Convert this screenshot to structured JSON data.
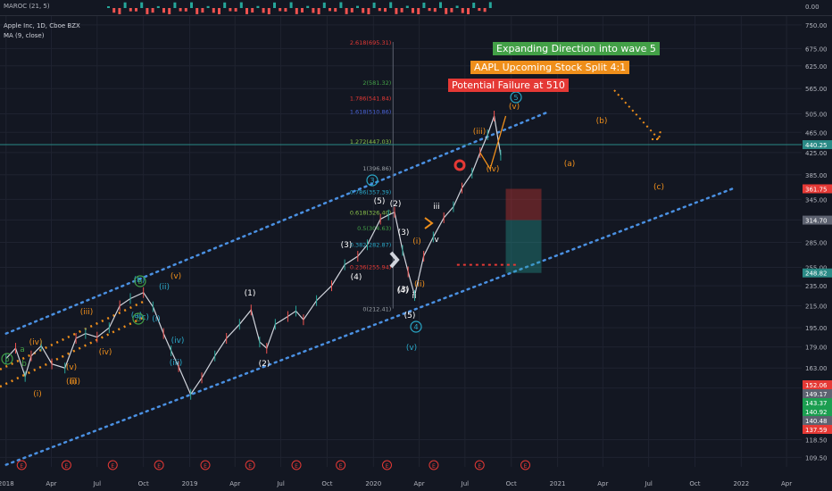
{
  "indicator_title": "MAROC (21, 5)",
  "symbol_title": "Apple Inc, 1D, Cboe BZX",
  "ma_title": "MA (9, close)",
  "indicator_axis": [
    "0.00",
    "-5.00"
  ],
  "banners": [
    {
      "text": "Expanding Direction into wave 5",
      "color": "#43a047"
    },
    {
      "text": "AAPL Upcoming Stock Split 4:1",
      "color": "#ef8f1b"
    },
    {
      "text": "Potential Failure at 510",
      "color": "#e53935"
    }
  ],
  "price_axis_ticks": [
    "750.00",
    "675.00",
    "625.00",
    "565.00",
    "505.00",
    "465.00",
    "425.00",
    "385.00",
    "345.00",
    "315.00",
    "285.00",
    "255.00",
    "235.00",
    "215.00",
    "195.00",
    "179.00",
    "163.00",
    "149.17",
    "118.50",
    "109.50"
  ],
  "price_badges": [
    {
      "text": "440.25",
      "bg": "#2a8a86"
    },
    {
      "text": "361.75",
      "bg": "#e53935"
    },
    {
      "text": "314.70",
      "bg": "#5d6270"
    },
    {
      "text": "248.82",
      "bg": "#2a8a86"
    },
    {
      "text": "152.06",
      "bg": "#e53935"
    },
    {
      "text": "149.17",
      "bg": "#5d6270"
    },
    {
      "text": "143.37",
      "bg": "#1b9e50"
    },
    {
      "text": "140.92",
      "bg": "#1b9e50"
    },
    {
      "text": "140.48",
      "bg": "#5d6270"
    },
    {
      "text": "137.59",
      "bg": "#e53935"
    }
  ],
  "time_axis": [
    "2018",
    "Apr",
    "Jul",
    "Oct",
    "2019",
    "Apr",
    "Jul",
    "Oct",
    "2020",
    "Apr",
    "Jul",
    "Oct",
    "2021",
    "Apr",
    "Jul",
    "Oct",
    "2022",
    "Apr"
  ],
  "fib_levels": [
    {
      "text": "2.618(695.31)",
      "color": "#e53935"
    },
    {
      "text": "2(581.32)",
      "color": "#43a047"
    },
    {
      "text": "1.786(541.84)",
      "color": "#e53935"
    },
    {
      "text": "1.618(510.86)",
      "color": "#4a63d8"
    },
    {
      "text": "1.272(447.03)",
      "color": "#8bc34a"
    },
    {
      "text": "1(396.86)",
      "color": "#9aa0a6"
    },
    {
      "text": "0.786(357.39)",
      "color": "#2aa8c8"
    },
    {
      "text": "0.618(326.40)",
      "color": "#8bc34a"
    },
    {
      "text": "0.5(304.63)",
      "color": "#43a047"
    },
    {
      "text": "0.382(282.87)",
      "color": "#2aa8c8"
    },
    {
      "text": "0.236(255.94)",
      "color": "#e53935"
    },
    {
      "text": "0(212.41)",
      "color": "#9aa0a6"
    }
  ],
  "wave_labels": [
    {
      "text": "(1)",
      "color": "#ffffff"
    },
    {
      "text": "(2)",
      "color": "#ffffff"
    },
    {
      "text": "(3)",
      "color": "#ffffff"
    },
    {
      "text": "(4)",
      "color": "#ffffff"
    },
    {
      "text": "(5)",
      "color": "#ffffff"
    },
    {
      "text": "(2)",
      "color": "#ffffff"
    },
    {
      "text": "(3)",
      "color": "#ffffff"
    },
    {
      "text": "(4)",
      "color": "#ffffff"
    },
    {
      "text": "(3)",
      "color": "#ffffff"
    },
    {
      "text": "(5)",
      "color": "#ffffff"
    },
    {
      "text": "iii",
      "color": "#ffffff"
    },
    {
      "text": "v",
      "color": "#ffffff"
    },
    {
      "text": "ii",
      "color": "#ffffff"
    },
    {
      "text": "(iii)",
      "color": "#ef8f1b"
    },
    {
      "text": "(iv)",
      "color": "#ef8f1b"
    },
    {
      "text": "(v)",
      "color": "#ef8f1b"
    },
    {
      "text": "(ii)",
      "color": "#ef8f1b"
    },
    {
      "text": "(i)",
      "color": "#ef8f1b"
    },
    {
      "text": "(a)",
      "color": "#ef8f1b"
    },
    {
      "text": "(b)",
      "color": "#ef8f1b"
    },
    {
      "text": "(c)",
      "color": "#ef8f1b"
    },
    {
      "text": "(v)",
      "color": "#2aa8c8"
    },
    {
      "text": "(iii)",
      "color": "#2aa8c8"
    },
    {
      "text": "(iv)",
      "color": "#2aa8c8"
    },
    {
      "text": "(ii)",
      "color": "#2aa8c8"
    },
    {
      "text": "(i)",
      "color": "#2aa8c8"
    },
    {
      "text": "(b)",
      "color": "#2aa8c8"
    },
    {
      "text": "(c)",
      "color": "#2aa8c8"
    },
    {
      "text": "(a)",
      "color": "#2aa8c8"
    },
    {
      "text": "(v)",
      "color": "#ef8f1b"
    },
    {
      "text": "(iv)",
      "color": "#ef8f1b"
    },
    {
      "text": "(iii)",
      "color": "#ef8f1b"
    },
    {
      "text": "(ii)",
      "color": "#ef8f1b"
    },
    {
      "text": "(i)",
      "color": "#ef8f1b"
    },
    {
      "text": "(iv)",
      "color": "#ef8f1b"
    },
    {
      "text": "(v)",
      "color": "#ef8f1b"
    },
    {
      "text": "(ii)",
      "color": "#ef8f1b"
    },
    {
      "text": "a",
      "color": "#43a047"
    },
    {
      "text": "b",
      "color": "#43a047"
    }
  ],
  "circled_waves": [
    {
      "text": "3",
      "color": "#2aa8c8"
    },
    {
      "text": "4",
      "color": "#2aa8c8"
    },
    {
      "text": "5",
      "color": "#2aa8c8"
    },
    {
      "text": "b",
      "color": "#43a047"
    },
    {
      "text": "c",
      "color": "#43a047"
    },
    {
      "text": "b",
      "color": "#43a047"
    }
  ],
  "event_marker": "E",
  "chart_data": {
    "type": "line",
    "title": "Apple Inc, 1D, Cboe BZX",
    "price_scale": "log",
    "ylim": [
      105,
      780
    ],
    "xlim": [
      "2017-12-20",
      "2022-05-01"
    ],
    "x_ticks": [
      "2018",
      "Apr",
      "Jul",
      "Oct",
      "2019",
      "Apr",
      "Jul",
      "Oct",
      "2020",
      "Apr",
      "Jul",
      "Oct",
      "2021",
      "Apr",
      "Jul",
      "Oct",
      "2022",
      "Apr"
    ],
    "series": [
      {
        "values_dates": [
          "2018-01-01",
          "2018-01-20",
          "2018-02-08",
          "2018-02-20",
          "2018-03-12",
          "2018-04-02",
          "2018-04-28",
          "2018-05-20",
          "2018-06-08",
          "2018-07-01",
          "2018-07-25",
          "2018-08-15",
          "2018-09-05",
          "2018-10-01",
          "2018-10-20",
          "2018-11-10",
          "2018-11-25",
          "2018-12-10",
          "2019-01-03",
          "2019-01-25",
          "2019-02-20",
          "2019-03-15",
          "2019-04-10",
          "2019-05-03",
          "2019-05-20",
          "2019-06-03",
          "2019-06-20",
          "2019-07-15",
          "2019-07-31",
          "2019-08-15",
          "2019-09-10",
          "2019-10-10",
          "2019-11-05",
          "2019-12-01",
          "2019-12-20",
          "2020-01-15",
          "2020-01-31",
          "2020-02-12",
          "2020-02-28",
          "2020-03-10",
          "2020-03-23",
          "2020-04-10",
          "2020-04-29",
          "2020-05-20",
          "2020-06-08",
          "2020-06-25",
          "2020-07-15",
          "2020-07-31",
          "2020-08-15",
          "2020-08-28",
          "2020-09-10"
        ],
        "values": [
          170,
          178,
          157,
          172,
          180,
          166,
          163,
          186,
          190,
          187,
          195,
          215,
          222,
          228,
          214,
          190,
          176,
          164,
          145,
          156,
          172,
          186,
          198,
          211,
          183,
          178,
          198,
          205,
          210,
          202,
          220,
          235,
          258,
          268,
          282,
          316,
          322,
          326,
          275,
          250,
          225,
          268,
          292,
          318,
          334,
          363,
          388,
          425,
          460,
          500,
          420
        ]
      }
    ],
    "fib_levels": [
      {
        "ratio": 2.618,
        "price": 695.31
      },
      {
        "ratio": 2,
        "price": 581.32
      },
      {
        "ratio": 1.786,
        "price": 541.84
      },
      {
        "ratio": 1.618,
        "price": 510.86
      },
      {
        "ratio": 1.272,
        "price": 447.03
      },
      {
        "ratio": 1,
        "price": 396.86
      },
      {
        "ratio": 0.786,
        "price": 357.39
      },
      {
        "ratio": 0.618,
        "price": 326.4
      },
      {
        "ratio": 0.5,
        "price": 304.63
      },
      {
        "ratio": 0.382,
        "price": 282.87
      },
      {
        "ratio": 0.236,
        "price": 255.94
      },
      {
        "ratio": 0,
        "price": 212.41
      }
    ],
    "channel_upper": [
      {
        "date": "2018-01-01",
        "price": 190
      },
      {
        "date": "2020-12-15",
        "price": 510
      }
    ],
    "channel_lower": [
      {
        "date": "2018-01-01",
        "price": 106
      },
      {
        "date": "2021-12-15",
        "price": 362
      }
    ],
    "current_price": 440.25,
    "grid": true,
    "legend": "top-left"
  }
}
